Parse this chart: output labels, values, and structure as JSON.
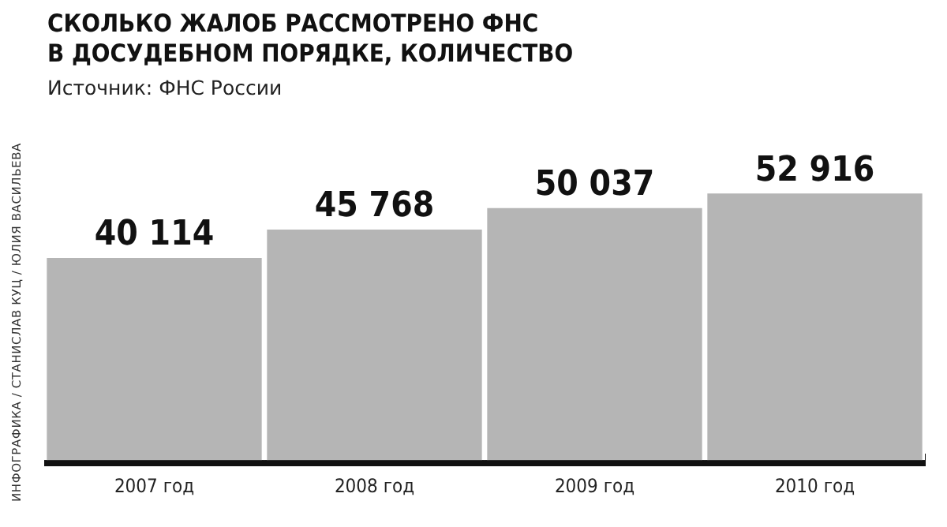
{
  "chart_data": {
    "type": "bar",
    "title": "СКОЛЬКО ЖАЛОБ РАССМОТРЕНО ФНС\nВ ДОСУДЕБНОМ ПОРЯДКЕ, КОЛИЧЕСТВО",
    "subtitle": "Источник: ФНС России",
    "annotations": [
      "ИНФОГРАФИКА / СТАНИСЛАВ КУЦ / ЮЛИЯ ВАСИЛЬЕВА"
    ],
    "categories": [
      "2007 год",
      "2008 год",
      "2009 год",
      "2010 год"
    ],
    "values": [
      40114,
      45768,
      50037,
      52916
    ],
    "value_labels": [
      "40 114",
      "45 768",
      "50 037",
      "52 916"
    ],
    "color": "#b5b5b5",
    "tick_labels": "x",
    "grid": false,
    "legend": false
  }
}
